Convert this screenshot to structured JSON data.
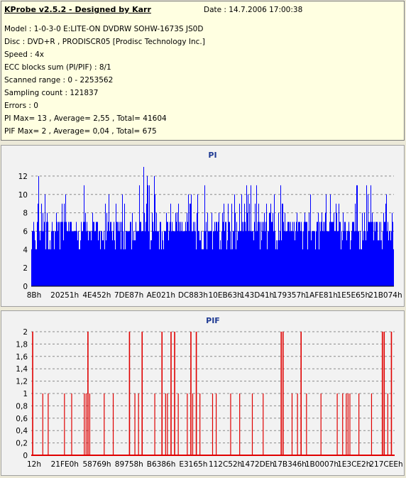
{
  "info": {
    "title": "KProbe v2.5.2 - Designed by Karr",
    "date": "Date : 14.7.2006 17:00:38",
    "lines": [
      "Model : 1-0-3-0 E:LITE-ON DVDRW SOHW-1673S JS0D",
      "Disc : DVD+R , PRODISCR05 [Prodisc Technology Inc.]",
      "Speed : 4x",
      "ECC blocks sum (PI/PIF) : 8/1",
      "Scanned range : 0 - 2253562",
      "Sampling count : 121837",
      "Errors : 0",
      "PI Max= 13 , Average= 2,55 , Total= 41604",
      "PIF Max= 2 , Average= 0,04 , Total= 675"
    ]
  },
  "colors": {
    "pi": "#0000ff",
    "pif": "#e00000",
    "grid": "#8a8a8a",
    "background": "#f2f2f2"
  },
  "chart_data": [
    {
      "type": "area",
      "title": "PI",
      "ylim": [
        0,
        13
      ],
      "yticks": [
        "0",
        "2",
        "4",
        "6",
        "8",
        "10",
        "12"
      ],
      "ytick_values": [
        0,
        2,
        4,
        6,
        8,
        10,
        12
      ],
      "xticks": [
        "8Bh",
        "20251h",
        "4E452h",
        "7DE87h",
        "AE021h",
        "DC883h",
        "10EB63h",
        "143D41h",
        "179357h",
        "1AFE81h",
        "1E5E65h",
        "21B074h"
      ],
      "grid": true,
      "series": [
        {
          "color": "#0000ff",
          "peaks": [
            [
              0.02,
              12
            ],
            [
              0.25,
              10
            ],
            [
              0.31,
              13
            ],
            [
              0.32,
              12
            ],
            [
              0.34,
              12
            ],
            [
              0.56,
              10
            ],
            [
              0.58,
              10
            ],
            [
              0.67,
              10
            ],
            [
              0.77,
              10
            ],
            [
              0.93,
              10
            ],
            [
              0.98,
              10
            ]
          ]
        }
      ]
    },
    {
      "type": "bar",
      "title": "PIF",
      "ylim": [
        0,
        2
      ],
      "yticks": [
        "0",
        "0,2",
        "0,4",
        "0,6",
        "0,8",
        "1",
        "1,2",
        "1,4",
        "1,6",
        "1,8",
        "2"
      ],
      "ytick_values": [
        0,
        0.2,
        0.4,
        0.6,
        0.8,
        1,
        1.2,
        1.4,
        1.6,
        1.8,
        2
      ],
      "xticks": [
        "12h",
        "21FE0h",
        "58769h",
        "89758h",
        "B6386h",
        "E3165h",
        "112C52h",
        "1472DEh",
        "17B346h",
        "1B0007h",
        "1E3CE2h",
        "217CEEh"
      ],
      "grid": true,
      "series": [
        {
          "color": "#e00000",
          "twos": [
            0.002,
            0.155,
            0.27,
            0.305,
            0.36,
            0.385,
            0.395,
            0.44,
            0.455,
            0.69,
            0.695,
            0.745,
            0.97,
            0.975,
            0.995
          ],
          "ones": [
            0.03,
            0.045,
            0.09,
            0.11,
            0.145,
            0.15,
            0.16,
            0.2,
            0.225,
            0.285,
            0.295,
            0.34,
            0.37,
            0.375,
            0.405,
            0.43,
            0.445,
            0.465,
            0.5,
            0.51,
            0.55,
            0.575,
            0.61,
            0.64,
            0.72,
            0.735,
            0.76,
            0.8,
            0.845,
            0.86,
            0.87,
            0.875,
            0.88,
            0.905,
            0.94,
            0.985
          ]
        }
      ]
    }
  ]
}
